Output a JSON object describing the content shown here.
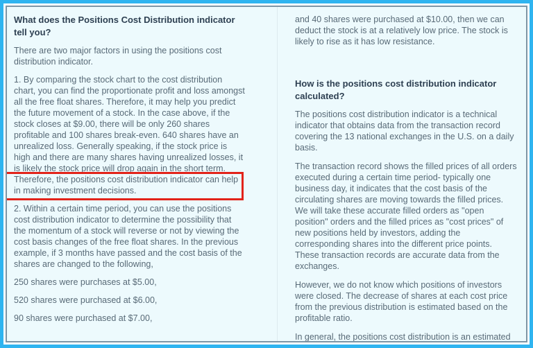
{
  "page": {
    "background_color": "#edfafd",
    "outer_border_color": "#2fb4f0",
    "inner_border_color": "#7d95a5",
    "highlight_box_color": "#e2231a",
    "body_text_color": "#586a77",
    "heading_text_color": "#2e4052"
  },
  "left_column": {
    "heading": "What does the Positions Cost Distribution indicator tell you?",
    "paragraphs": {
      "intro": "There are two major factors in using the positions cost distribution indicator.",
      "point1": "1. By comparing the stock chart to the cost distribution chart, you can find the proportionate profit and loss amongst all the free float shares. Therefore, it may help you predict the future movement of a stock. In the case above, if the stock closes at $9.00, there will be only 260 shares profitable and 100 shares break-even. 640 shares have an unrealized loss. Generally speaking, if the stock price is high and there are many shares having unrealized losses, it is likely the stock price will drop again in the short term. Therefore, the positions cost distribution indicator can help in making investment decisions.",
      "point2": "2. Within a certain time period, you can use the positions cost distribution indicator to determine the possibility that the momentum of a stock will reverse or not by viewing the cost basis changes of the free float shares. In the previous example, if 3 months have passed and the cost basis of the shares are changed to the following,",
      "line_250": "250 shares were purchases at $5.00,",
      "line_520": "520 shares were purchased at $6.00,",
      "line_90": "90 shares were purchased at $7.00,"
    },
    "highlighted_text": "term. Therefore, the positions cost distribution indicator can help in making investment decisions."
  },
  "right_column": {
    "intro_paragraph": "and 40 shares were purchased at $10.00, then we can deduct the stock is at a relatively low price. The stock is likely to rise as it has low resistance.",
    "heading": "How is the positions cost distribution indicator calculated?",
    "paragraphs": {
      "p1": "The positions cost distribution indicator is a technical indicator that obtains data from the transaction record covering the 13 national exchanges in the U.S. on a daily basis.",
      "p2": "The transaction record shows the filled prices of all orders executed during a certain time period- typically one business day, it indicates that the cost basis of the circulating shares are moving towards the filled prices. We will take these accurate filled orders as \"open position\" orders and the filled prices as \"cost prices\" of new positions held by investors, adding the corresponding shares into the different price points. These transaction records are accurate data from the exchanges.",
      "p3": "However,  we do not know which positions of investors were closed. The decrease of shares at each cost price from the previous distribution is estimated based on the profitable ratio.",
      "p4": "In general, the positions cost distribution is an estimated result and is for reference only and does not constitute an investment recommendation."
    }
  }
}
